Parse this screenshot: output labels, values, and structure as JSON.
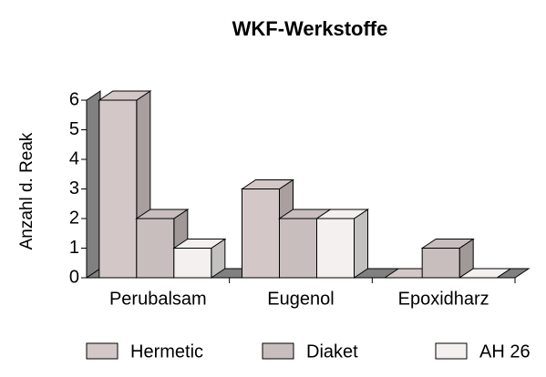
{
  "chart_data": {
    "type": "bar3d",
    "title": "WKF-Werkstoffe",
    "y_label": "Anzahl d. Reak",
    "categories": [
      "Perubalsam",
      "Eugenol",
      "Epoxidharz"
    ],
    "series": [
      {
        "name": "Hermetic",
        "color": "#d3c7c7",
        "values": [
          6,
          3,
          0
        ]
      },
      {
        "name": "Diaket",
        "color": "#c9bebe",
        "values": [
          2,
          2,
          1
        ]
      },
      {
        "name": "AH 26",
        "color": "#f4f0f0",
        "values": [
          1,
          2,
          0
        ]
      }
    ],
    "ylim": [
      0,
      6
    ],
    "yticks": [
      0,
      1,
      2,
      3,
      4,
      5,
      6
    ],
    "legend": "bottom"
  }
}
